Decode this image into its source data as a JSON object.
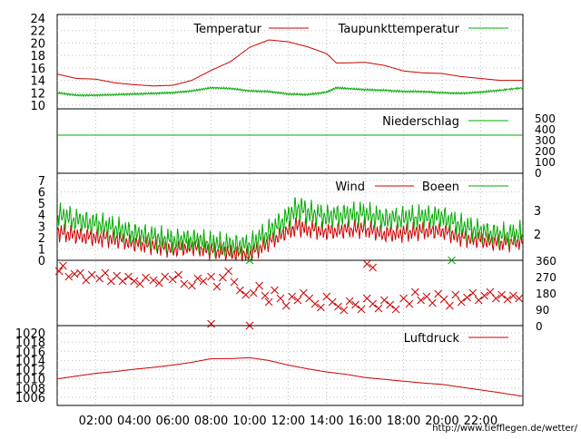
{
  "source_url": "http://www.tiefflegen.de/wetter/",
  "colors": {
    "red": "#cc0000",
    "green": "#00aa00",
    "grid": "#bdbdbd",
    "frame": "#000000",
    "credit": "#cc0000"
  },
  "x_axis": {
    "labels": [
      "02:00",
      "04:00",
      "06:00",
      "08:00",
      "10:00",
      "12:00",
      "14:00",
      "16:00",
      "18:00",
      "20:00",
      "22:00"
    ],
    "hours": [
      2,
      4,
      6,
      8,
      10,
      12,
      14,
      16,
      18,
      20,
      22
    ],
    "range_hours": [
      0,
      24.2
    ]
  },
  "chart_data": [
    {
      "type": "line",
      "panel": "temperature",
      "ylim": [
        10,
        26
      ],
      "yticks": [
        10,
        12,
        14,
        16,
        18,
        20,
        22,
        24
      ],
      "grid": true,
      "legend": "top",
      "x": [
        0,
        1,
        2,
        3,
        4,
        5,
        6,
        7,
        8,
        9,
        10,
        11,
        12,
        13,
        14,
        14.5,
        15,
        16,
        17,
        18,
        19,
        20,
        21,
        22,
        23,
        24.2
      ],
      "series": [
        {
          "name": "Temperatur",
          "color": "red",
          "values": [
            15.0,
            14.3,
            14.2,
            13.6,
            13.3,
            13.1,
            13.2,
            14.0,
            15.6,
            17.0,
            19.3,
            20.5,
            20.2,
            19.4,
            18.3,
            16.8,
            16.8,
            16.9,
            16.4,
            15.5,
            15.2,
            15.1,
            14.6,
            14.3,
            14.0,
            14.0
          ]
        },
        {
          "name": "Taupunkttemperatur",
          "color": "green",
          "values": [
            12.0,
            11.6,
            11.6,
            11.7,
            11.8,
            11.9,
            12.0,
            12.3,
            12.8,
            12.7,
            12.3,
            12.2,
            11.8,
            11.7,
            12.1,
            12.8,
            12.7,
            12.5,
            12.4,
            12.2,
            12.2,
            12.0,
            11.9,
            12.1,
            12.4,
            12.8
          ]
        }
      ]
    },
    {
      "type": "line",
      "panel": "precipitation",
      "ylim": [
        0,
        600
      ],
      "yticks": [
        0,
        100,
        200,
        300,
        400,
        500
      ],
      "legend": "top-right",
      "x": [
        0,
        24.2
      ],
      "series": [
        {
          "name": "Niederschlag",
          "color": "green",
          "values": [
            350,
            350
          ]
        }
      ]
    },
    {
      "type": "line",
      "panel": "wind",
      "ylim": [
        0,
        7
      ],
      "yticks": [
        0,
        1,
        2,
        3,
        4,
        5,
        6,
        7
      ],
      "right_labels": [
        "3",
        "2"
      ],
      "legend": "top-right",
      "x": [
        0,
        1,
        2,
        3,
        4,
        5,
        6,
        7,
        8,
        9,
        10,
        11,
        12,
        12.5,
        13,
        14,
        15,
        16,
        17,
        18,
        19,
        20,
        21,
        22,
        23,
        24.2
      ],
      "series": [
        {
          "name": "Wind",
          "color": "red",
          "values": [
            2.5,
            2.2,
            2.0,
            1.9,
            1.5,
            1.3,
            1.0,
            1.2,
            0.9,
            0.7,
            0.5,
            1.6,
            2.6,
            3.0,
            2.8,
            2.5,
            2.7,
            2.8,
            2.3,
            2.4,
            2.6,
            2.6,
            2.0,
            1.8,
            1.5,
            1.7
          ]
        },
        {
          "name": "Boeen",
          "color": "green",
          "values": [
            4.0,
            3.5,
            3.2,
            2.8,
            2.3,
            2.0,
            1.7,
            1.8,
            1.5,
            1.3,
            1.3,
            2.5,
            3.8,
            4.6,
            4.2,
            3.8,
            4.0,
            4.1,
            3.6,
            3.7,
            3.8,
            3.8,
            3.0,
            2.5,
            2.2,
            2.4
          ]
        }
      ]
    },
    {
      "type": "scatter",
      "panel": "wind-direction",
      "ylim": [
        0,
        360
      ],
      "right_labels": [
        "360",
        "270",
        "180",
        "90",
        "0"
      ],
      "marker": "x",
      "color": "red",
      "points": [
        [
          0.1,
          300
        ],
        [
          0.3,
          330
        ],
        [
          0.6,
          270
        ],
        [
          0.9,
          285
        ],
        [
          1.2,
          290
        ],
        [
          1.5,
          250
        ],
        [
          1.8,
          280
        ],
        [
          2.2,
          260
        ],
        [
          2.5,
          290
        ],
        [
          2.8,
          245
        ],
        [
          3.1,
          275
        ],
        [
          3.4,
          245
        ],
        [
          3.7,
          270
        ],
        [
          4.0,
          245
        ],
        [
          4.3,
          230
        ],
        [
          4.6,
          265
        ],
        [
          5.0,
          250
        ],
        [
          5.3,
          235
        ],
        [
          5.6,
          270
        ],
        [
          6.0,
          255
        ],
        [
          6.3,
          280
        ],
        [
          6.6,
          230
        ],
        [
          7.0,
          220
        ],
        [
          7.3,
          260
        ],
        [
          7.6,
          245
        ],
        [
          8.0,
          270
        ],
        [
          8.3,
          215
        ],
        [
          8.6,
          265
        ],
        [
          8.9,
          300
        ],
        [
          9.2,
          240
        ],
        [
          9.5,
          195
        ],
        [
          9.8,
          170
        ],
        [
          10.0,
          0
        ],
        [
          10.2,
          180
        ],
        [
          10.5,
          220
        ],
        [
          10.8,
          165
        ],
        [
          11.0,
          130
        ],
        [
          11.3,
          195
        ],
        [
          11.6,
          150
        ],
        [
          11.9,
          110
        ],
        [
          12.2,
          160
        ],
        [
          12.5,
          140
        ],
        [
          12.8,
          180
        ],
        [
          13.1,
          150
        ],
        [
          13.4,
          120
        ],
        [
          13.7,
          100
        ],
        [
          14.0,
          160
        ],
        [
          14.3,
          130
        ],
        [
          14.6,
          105
        ],
        [
          14.9,
          85
        ],
        [
          15.2,
          135
        ],
        [
          15.5,
          115
        ],
        [
          15.8,
          90
        ],
        [
          16.1,
          150
        ],
        [
          16.4,
          120
        ],
        [
          16.7,
          95
        ],
        [
          17.0,
          140
        ],
        [
          17.3,
          115
        ],
        [
          17.6,
          90
        ],
        [
          18.0,
          150
        ],
        [
          18.3,
          120
        ],
        [
          18.6,
          185
        ],
        [
          18.9,
          140
        ],
        [
          19.2,
          160
        ],
        [
          19.5,
          125
        ],
        [
          19.8,
          175
        ],
        [
          20.1,
          145
        ],
        [
          20.4,
          110
        ],
        [
          20.7,
          170
        ],
        [
          21.0,
          130
        ],
        [
          21.3,
          155
        ],
        [
          21.6,
          180
        ],
        [
          21.9,
          140
        ],
        [
          22.2,
          165
        ],
        [
          22.5,
          185
        ],
        [
          22.8,
          150
        ],
        [
          23.1,
          170
        ],
        [
          23.4,
          145
        ],
        [
          23.7,
          165
        ],
        [
          24.0,
          150
        ],
        [
          8.0,
          10
        ],
        [
          16.4,
          320
        ],
        [
          16.1,
          340
        ]
      ],
      "green_points": [
        [
          10.0,
          360
        ],
        [
          20.5,
          360
        ]
      ]
    },
    {
      "type": "line",
      "panel": "pressure",
      "ylim": [
        1005,
        1021
      ],
      "yticks": [
        1006,
        1008,
        1010,
        1012,
        1014,
        1016,
        1018,
        1020
      ],
      "legend": "top-right",
      "x": [
        0,
        1,
        2,
        3,
        4,
        5,
        6,
        7,
        8,
        9,
        10,
        11,
        12,
        13,
        14,
        15,
        16,
        17,
        18,
        19,
        20,
        21,
        22,
        23,
        24.2
      ],
      "series": [
        {
          "name": "Luftdruck",
          "color": "red",
          "values": [
            1010.0,
            1010.6,
            1011.2,
            1011.6,
            1012.1,
            1012.5,
            1013.0,
            1013.6,
            1014.4,
            1014.4,
            1014.6,
            1014.0,
            1013.0,
            1012.2,
            1011.5,
            1011.0,
            1010.3,
            1009.9,
            1009.5,
            1009.1,
            1008.8,
            1008.2,
            1007.6,
            1007.0,
            1006.2
          ]
        }
      ]
    }
  ]
}
